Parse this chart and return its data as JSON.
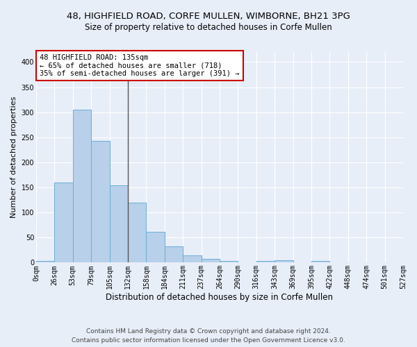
{
  "title_line1": "48, HIGHFIELD ROAD, CORFE MULLEN, WIMBORNE, BH21 3PG",
  "title_line2": "Size of property relative to detached houses in Corfe Mullen",
  "xlabel": "Distribution of detached houses by size in Corfe Mullen",
  "ylabel": "Number of detached properties",
  "footnote_line1": "Contains HM Land Registry data © Crown copyright and database right 2024.",
  "footnote_line2": "Contains public sector information licensed under the Open Government Licence v3.0.",
  "bin_labels": [
    "0sqm",
    "26sqm",
    "53sqm",
    "79sqm",
    "105sqm",
    "132sqm",
    "158sqm",
    "184sqm",
    "211sqm",
    "237sqm",
    "264sqm",
    "290sqm",
    "316sqm",
    "343sqm",
    "369sqm",
    "395sqm",
    "422sqm",
    "448sqm",
    "474sqm",
    "501sqm",
    "527sqm"
  ],
  "bar_values": [
    4,
    160,
    305,
    243,
    154,
    120,
    62,
    33,
    15,
    8,
    4,
    0,
    3,
    5,
    0,
    4,
    0,
    0,
    0,
    0
  ],
  "bar_color": "#b8d0ea",
  "bar_edge_color": "#6aaed6",
  "property_line_x": 5.0,
  "annotation_line1": "48 HIGHFIELD ROAD: 135sqm",
  "annotation_line2": "← 65% of detached houses are smaller (718)",
  "annotation_line3": "35% of semi-detached houses are larger (391) →",
  "annotation_box_facecolor": "#ffffff",
  "annotation_box_edgecolor": "#cc0000",
  "ylim": [
    0,
    420
  ],
  "yticks": [
    0,
    50,
    100,
    150,
    200,
    250,
    300,
    350,
    400
  ],
  "background_color": "#e8eef8",
  "grid_color": "#ffffff",
  "title_fontsize": 9.5,
  "subtitle_fontsize": 8.5,
  "tick_fontsize": 7,
  "ylabel_fontsize": 8,
  "xlabel_fontsize": 8.5,
  "annot_fontsize": 7.5,
  "footnote_fontsize": 6.5
}
